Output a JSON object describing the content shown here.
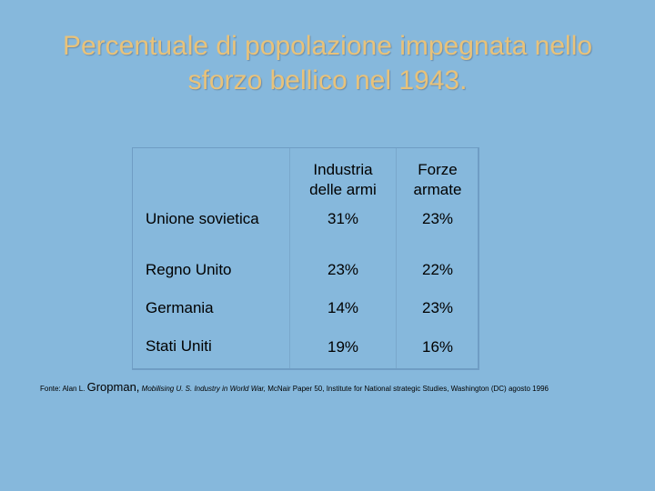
{
  "title_line1": "Percentuale di popolazione impegnata nello",
  "title_line2": "sforzo bellico nel 1943.",
  "table": {
    "col_headers": [
      {
        "line1": "Industria",
        "line2": "delle armi"
      },
      {
        "line1": "Forze",
        "line2": "armate"
      }
    ],
    "rows": [
      {
        "label": "Unione sovietica",
        "c1": "31%",
        "c2": "23%"
      },
      {
        "label": "Regno Unito",
        "c1": "23%",
        "c2": "22%"
      },
      {
        "label": "Germania",
        "c1": "14%",
        "c2": "23%"
      },
      {
        "label": "Stati Uniti",
        "c1": "19%",
        "c2": "16%"
      }
    ]
  },
  "footer": {
    "prefix": "Fonte: Alan L.",
    "author_surname": "Gropman,",
    "work": "Mobilising U. S. Industry in World War,",
    "rest": "McNair Paper 50, Institute for National strategic Studies, Washington (DC) agosto 1996"
  }
}
